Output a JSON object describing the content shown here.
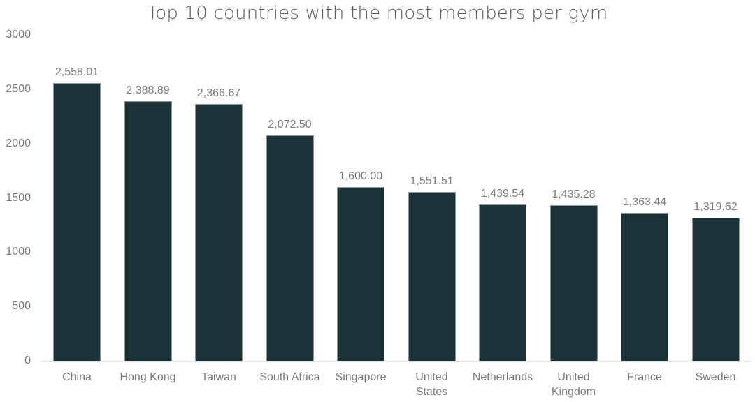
{
  "chart_data": {
    "type": "bar",
    "title": "Top 10 countries with the most members per gym",
    "xlabel": "",
    "ylabel": "",
    "ylim": [
      0,
      3000
    ],
    "yticks": [
      0,
      500,
      1000,
      1500,
      2000,
      2500,
      3000
    ],
    "grid": false,
    "legend": null,
    "bar_color": "#1c3239",
    "categories": [
      "China",
      "Hong Kong",
      "Taiwan",
      "South Africa",
      "Singapore",
      "United States",
      "Netherlands",
      "United Kingdom",
      "France",
      "Sweden"
    ],
    "category_lines": [
      [
        "China"
      ],
      [
        "Hong Kong"
      ],
      [
        "Taiwan"
      ],
      [
        "South Africa"
      ],
      [
        "Singapore"
      ],
      [
        "United",
        "States"
      ],
      [
        "Netherlands"
      ],
      [
        "United",
        "Kingdom"
      ],
      [
        "France"
      ],
      [
        "Sweden"
      ]
    ],
    "values": [
      2558.01,
      2388.89,
      2366.67,
      2072.5,
      1600.0,
      1551.51,
      1439.54,
      1435.28,
      1363.44,
      1319.62
    ],
    "value_labels": [
      "2,558.01",
      "2,388.89",
      "2,366.67",
      "2,072.50",
      "1,600.00",
      "1,551.51",
      "1,439.54",
      "1,435.28",
      "1,363.44",
      "1,319.62"
    ]
  }
}
